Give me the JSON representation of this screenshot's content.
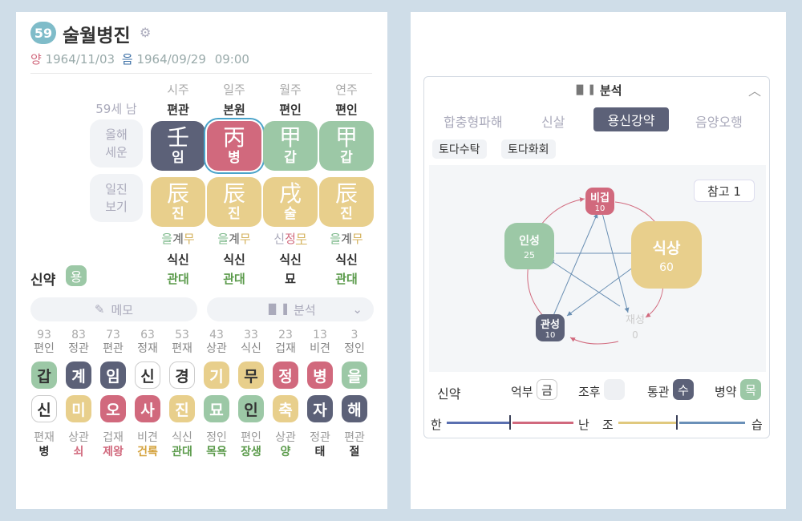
{
  "header": {
    "age_badge": "59",
    "name": "술월병진",
    "solar_prefix": "양",
    "solar_date": "1964/11/03",
    "lunar_prefix": "음",
    "lunar_date": "1964/09/29",
    "time": "09:00"
  },
  "pillars": {
    "age_label": "59세 남",
    "side_boxes": [
      "올해\n세운",
      "일진\n보기"
    ],
    "columns": [
      {
        "title": "시주",
        "ten_god": "편관",
        "stem_hanja": "壬",
        "stem_kor": "임",
        "stem_color": "#5c6178",
        "branch_hanja": "辰",
        "branch_kor": "진",
        "hidden": [
          "을",
          "계",
          "무"
        ],
        "hidden_colors": [
          "#7cb88a",
          "#555",
          "#d4b25c"
        ],
        "hidden_ul": [
          false,
          false,
          false
        ],
        "star": "식신",
        "stage": "관대",
        "stage_color": "#5a9a4a"
      },
      {
        "title": "일주",
        "ten_god": "본원",
        "stem_hanja": "丙",
        "stem_kor": "병",
        "stem_color": "#d1697d",
        "branch_hanja": "辰",
        "branch_kor": "진",
        "hidden": [
          "을",
          "계",
          "무"
        ],
        "hidden_colors": [
          "#7cb88a",
          "#555",
          "#d4b25c"
        ],
        "hidden_ul": [
          false,
          false,
          false
        ],
        "star": "식신",
        "stage": "관대",
        "stage_color": "#5a9a4a"
      },
      {
        "title": "월주",
        "ten_god": "편인",
        "stem_hanja": "甲",
        "stem_kor": "갑",
        "stem_color": "#9cc8a6",
        "branch_hanja": "戌",
        "branch_kor": "술",
        "hidden": [
          "신",
          "정",
          "무"
        ],
        "hidden_colors": [
          "#aab",
          "#d1697d",
          "#d4b25c"
        ],
        "hidden_ul": [
          false,
          false,
          true
        ],
        "star": "식신",
        "stage": "묘",
        "stage_color": "#333"
      },
      {
        "title": "연주",
        "ten_god": "편인",
        "stem_hanja": "甲",
        "stem_kor": "갑",
        "stem_color": "#9cc8a6",
        "branch_hanja": "辰",
        "branch_kor": "진",
        "hidden": [
          "을",
          "계",
          "무"
        ],
        "hidden_colors": [
          "#7cb88a",
          "#555",
          "#d4b25c"
        ],
        "hidden_ul": [
          false,
          false,
          false
        ],
        "star": "식신",
        "stage": "관대",
        "stage_color": "#5a9a4a"
      }
    ]
  },
  "strength": {
    "label": "신약",
    "badge": "용"
  },
  "buttons": {
    "memo": "메모",
    "analysis": "분석"
  },
  "daeun": [
    {
      "age": "93",
      "god": "편인",
      "stem": "갑",
      "stem_bg": "#9cc8a6",
      "stem_fg": "#333",
      "branch": "신",
      "branch_bg": "#fff",
      "branch_fg": "#333",
      "bgod": "편재",
      "stage": "병",
      "stage_color": "#333"
    },
    {
      "age": "83",
      "god": "정관",
      "stem": "계",
      "stem_bg": "#5c6178",
      "stem_fg": "#fff",
      "branch": "미",
      "branch_bg": "#e8cf8c",
      "branch_fg": "#fff",
      "bgod": "상관",
      "stage": "쇠",
      "stage_color": "#d1697d"
    },
    {
      "age": "73",
      "god": "편관",
      "stem": "임",
      "stem_bg": "#5c6178",
      "stem_fg": "#fff",
      "branch": "오",
      "branch_bg": "#d1697d",
      "branch_fg": "#fff",
      "bgod": "겁재",
      "stage": "제왕",
      "stage_color": "#d1697d"
    },
    {
      "age": "63",
      "god": "정재",
      "stem": "신",
      "stem_bg": "#fff",
      "stem_fg": "#333",
      "branch": "사",
      "branch_bg": "#d1697d",
      "branch_fg": "#fff",
      "bgod": "비견",
      "stage": "건록",
      "stage_color": "#d4a23c"
    },
    {
      "age": "53",
      "god": "편재",
      "stem": "경",
      "stem_bg": "#fff",
      "stem_fg": "#333",
      "branch": "진",
      "branch_bg": "#e8cf8c",
      "branch_fg": "#fff",
      "bgod": "식신",
      "stage": "관대",
      "stage_color": "#5a9a4a"
    },
    {
      "age": "43",
      "god": "상관",
      "stem": "기",
      "stem_bg": "#e8cf8c",
      "stem_fg": "#fff",
      "branch": "묘",
      "branch_bg": "#9cc8a6",
      "branch_fg": "#fff",
      "bgod": "정인",
      "stage": "목욕",
      "stage_color": "#5a9a4a"
    },
    {
      "age": "33",
      "god": "식신",
      "stem": "무",
      "stem_bg": "#e8cf8c",
      "stem_fg": "#333",
      "branch": "인",
      "branch_bg": "#9cc8a6",
      "branch_fg": "#333",
      "bgod": "편인",
      "stage": "장생",
      "stage_color": "#5a9a4a"
    },
    {
      "age": "23",
      "god": "겁재",
      "stem": "정",
      "stem_bg": "#d1697d",
      "stem_fg": "#fff",
      "branch": "축",
      "branch_bg": "#e8cf8c",
      "branch_fg": "#fff",
      "bgod": "상관",
      "stage": "양",
      "stage_color": "#5a9a4a"
    },
    {
      "age": "13",
      "god": "비견",
      "stem": "병",
      "stem_bg": "#d1697d",
      "stem_fg": "#fff",
      "branch": "자",
      "branch_bg": "#5c6178",
      "branch_fg": "#fff",
      "bgod": "정관",
      "stage": "태",
      "stage_color": "#333"
    },
    {
      "age": "3",
      "god": "정인",
      "stem": "을",
      "stem_bg": "#9cc8a6",
      "stem_fg": "#fff",
      "branch": "해",
      "branch_bg": "#5c6178",
      "branch_fg": "#fff",
      "bgod": "편관",
      "stage": "절",
      "stage_color": "#333"
    }
  ],
  "analysis": {
    "title": "분석",
    "tabs": [
      "합충형파해",
      "신살",
      "용신강약",
      "음양오행"
    ],
    "active_tab": 2,
    "tags": [
      "토다수탁",
      "토다화회"
    ],
    "ref_button": "참고 1",
    "nodes": [
      {
        "label": "비겁",
        "value": "10",
        "color": "#d1697d"
      },
      {
        "label": "식상",
        "value": "60",
        "color": "#e8cf8c"
      },
      {
        "label": "재성",
        "value": "0",
        "color": "#ffffff"
      },
      {
        "label": "관성",
        "value": "10",
        "color": "#5c6178"
      },
      {
        "label": "인성",
        "value": "25",
        "color": "#9cc8a6"
      }
    ],
    "strength_label": "신약",
    "metrics": [
      {
        "label": "억부",
        "value": "금",
        "bg": "#fff",
        "fg": "#333"
      },
      {
        "label": "조후",
        "value": "",
        "bg": "#eef0f3",
        "fg": "#333"
      },
      {
        "label": "통관",
        "value": "수",
        "bg": "#5c6178",
        "fg": "#fff"
      },
      {
        "label": "병약",
        "value": "목",
        "bg": "#9cc8a6",
        "fg": "#fff"
      }
    ],
    "scale": [
      "한",
      "난",
      "조",
      "습"
    ]
  }
}
